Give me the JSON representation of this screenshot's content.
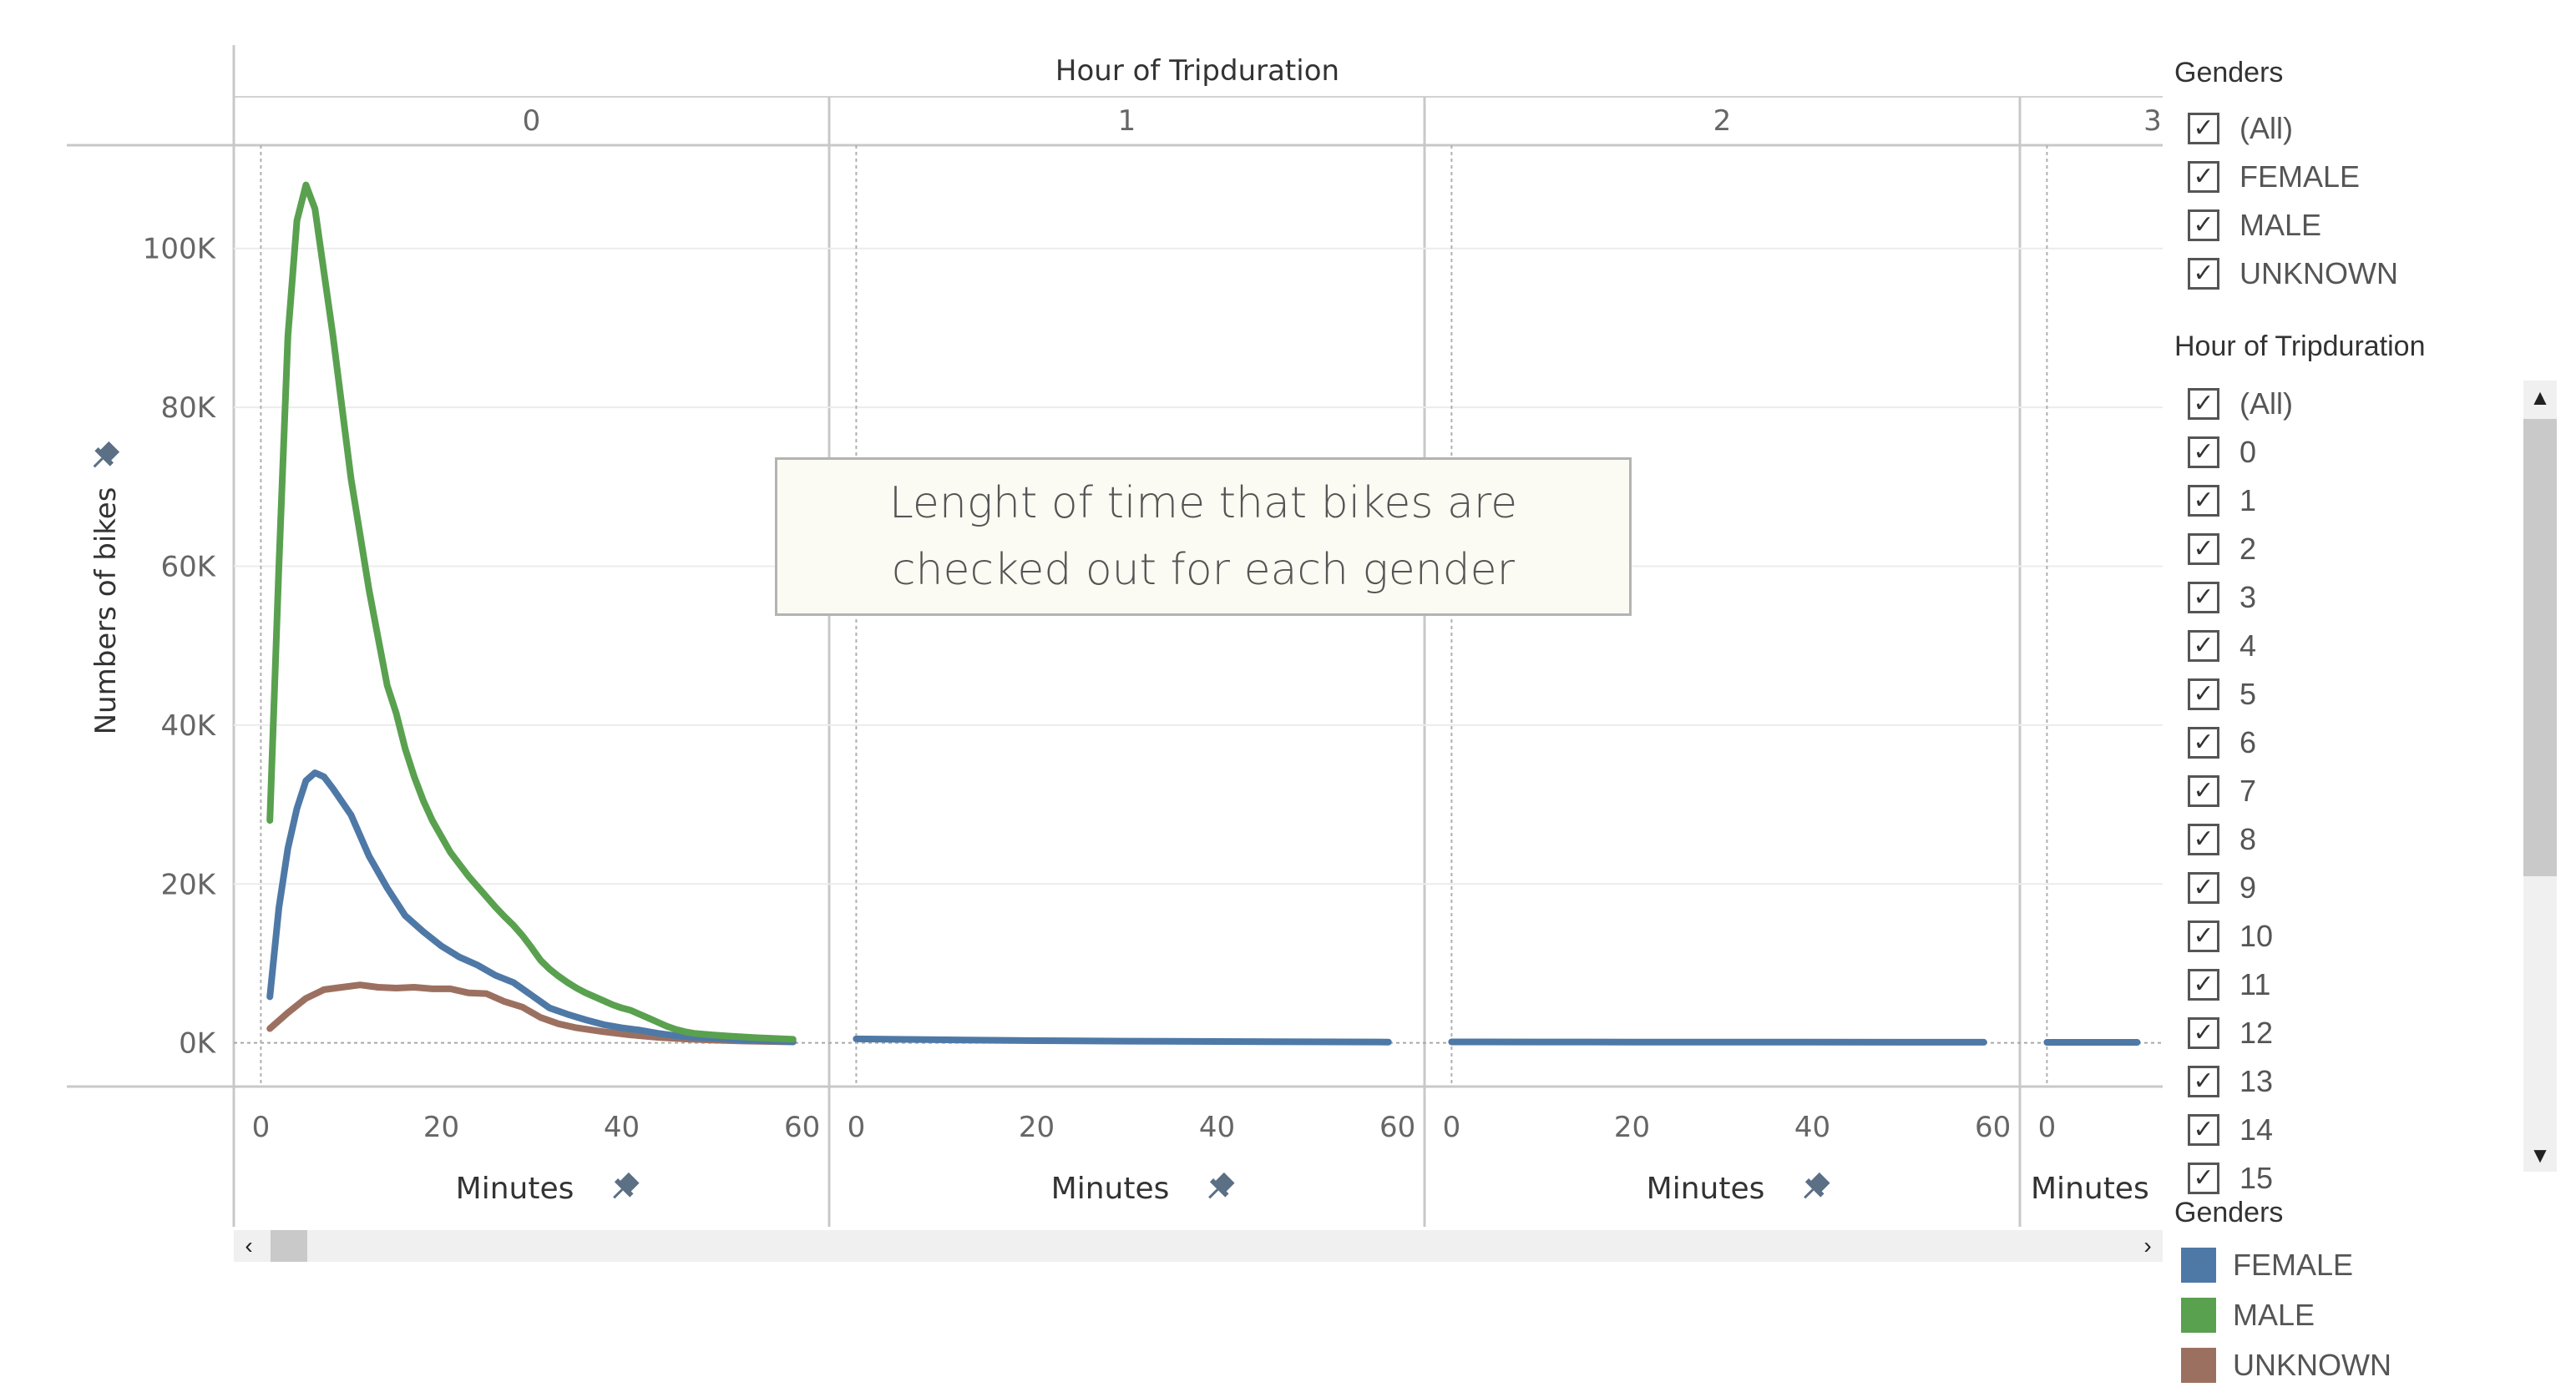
{
  "chart_data": {
    "type": "line",
    "column_header_title": "Hour of Tripduration",
    "panels": [
      "0",
      "1",
      "2",
      "3"
    ],
    "ylabel": "Numbers of bikes",
    "xlabel": "Minutes",
    "ylim": [
      -5500,
      113000
    ],
    "y_ticks": [
      0,
      20000,
      40000,
      60000,
      80000,
      100000
    ],
    "y_tick_labels": [
      "0K",
      "20K",
      "40K",
      "60K",
      "80K",
      "100K"
    ],
    "x_ticks": [
      0,
      20,
      40,
      60
    ],
    "x_tick_labels": [
      "0",
      "20",
      "40",
      "60"
    ],
    "xlim": [
      -3,
      63
    ],
    "grid": true,
    "annotation": "Lenght of time that bikes are checked out for each gender",
    "series": [
      {
        "name": "UNKNOWN",
        "color": "#9c7060",
        "panels": [
          {
            "x": [
              1,
              3,
              5,
              7,
              9,
              11,
              13,
              15,
              17,
              19,
              21,
              23,
              25,
              27,
              29,
              31,
              33,
              35,
              38,
              41,
              44,
              47,
              50,
              53,
              56,
              59
            ],
            "y": [
              1800,
              3800,
              5600,
              6700,
              7000,
              7300,
              7000,
              6900,
              7000,
              6800,
              6800,
              6300,
              6200,
              5200,
              4500,
              3200,
              2400,
              1900,
              1400,
              1000,
              700,
              500,
              350,
              250,
              180,
              120
            ]
          }
        ]
      },
      {
        "name": "FEMALE",
        "color": "#4e79a7",
        "panels": [
          {
            "x": [
              1,
              2,
              3,
              4,
              5,
              6,
              7,
              8,
              10,
              12,
              14,
              16,
              18,
              20,
              22,
              24,
              26,
              28,
              30,
              32,
              34,
              36,
              38,
              40,
              42,
              44,
              46,
              48,
              50,
              52,
              55,
              58,
              59
            ],
            "y": [
              5800,
              17000,
              24500,
              29500,
              33000,
              34000,
              33500,
              32000,
              28700,
              23500,
              19500,
              16000,
              14000,
              12200,
              10800,
              9800,
              8500,
              7600,
              6000,
              4400,
              3600,
              2900,
              2300,
              1900,
              1600,
              1200,
              900,
              700,
              600,
              450,
              300,
              200,
              150
            ]
          },
          {
            "x": [
              0,
              10,
              20,
              30,
              40,
              50,
              59
            ],
            "y": [
              500,
              380,
              280,
              220,
              170,
              130,
              100
            ]
          },
          {
            "x": [
              0,
              10,
              20,
              30,
              40,
              50,
              59
            ],
            "y": [
              120,
              110,
              100,
              90,
              85,
              80,
              75
            ]
          },
          {
            "x": [
              0,
              10
            ],
            "y": [
              70,
              65
            ]
          }
        ]
      },
      {
        "name": "MALE",
        "color": "#59a14f",
        "panels": [
          {
            "x": [
              1,
              2,
              3,
              4,
              5,
              6,
              7,
              8,
              9,
              10,
              11,
              12,
              13,
              14,
              15,
              16,
              17,
              18,
              19,
              20,
              21,
              22,
              23,
              24,
              25,
              26,
              27,
              28,
              29,
              30,
              31,
              32,
              33,
              34,
              35,
              36,
              37,
              38,
              39,
              40,
              41,
              42,
              43,
              44,
              45,
              46,
              47,
              48,
              50,
              52,
              55,
              59
            ],
            "y": [
              28000,
              60000,
              89000,
              103500,
              108000,
              105000,
              97000,
              89000,
              80000,
              71000,
              64000,
              57000,
              51000,
              45000,
              41500,
              37000,
              33500,
              30500,
              28000,
              26000,
              24000,
              22500,
              21000,
              19700,
              18400,
              17100,
              15900,
              14800,
              13500,
              12000,
              10400,
              9300,
              8400,
              7600,
              6900,
              6300,
              5800,
              5300,
              4800,
              4400,
              4100,
              3600,
              3100,
              2600,
              2100,
              1700,
              1400,
              1200,
              1000,
              850,
              650,
              450
            ]
          }
        ]
      }
    ]
  },
  "filters": {
    "genders": {
      "title": "Genders",
      "items": [
        "(All)",
        "FEMALE",
        "MALE",
        "UNKNOWN"
      ],
      "checked": true
    },
    "hour": {
      "title": "Hour of Tripduration",
      "items": [
        "(All)",
        "0",
        "1",
        "2",
        "3",
        "4",
        "5",
        "6",
        "7",
        "8",
        "9",
        "10",
        "11",
        "12",
        "13",
        "14",
        "15"
      ],
      "checked": true
    }
  },
  "legend": {
    "title": "Genders",
    "items": [
      {
        "label": "FEMALE",
        "color": "#4e79a7"
      },
      {
        "label": "MALE",
        "color": "#59a14f"
      },
      {
        "label": "UNKNOWN",
        "color": "#9c7060"
      }
    ]
  },
  "icons": {
    "axis_pin": "pin-icon",
    "scroll_up": "▲",
    "scroll_down": "▼",
    "scroll_left": "‹",
    "scroll_right": "›",
    "check": "✓"
  }
}
